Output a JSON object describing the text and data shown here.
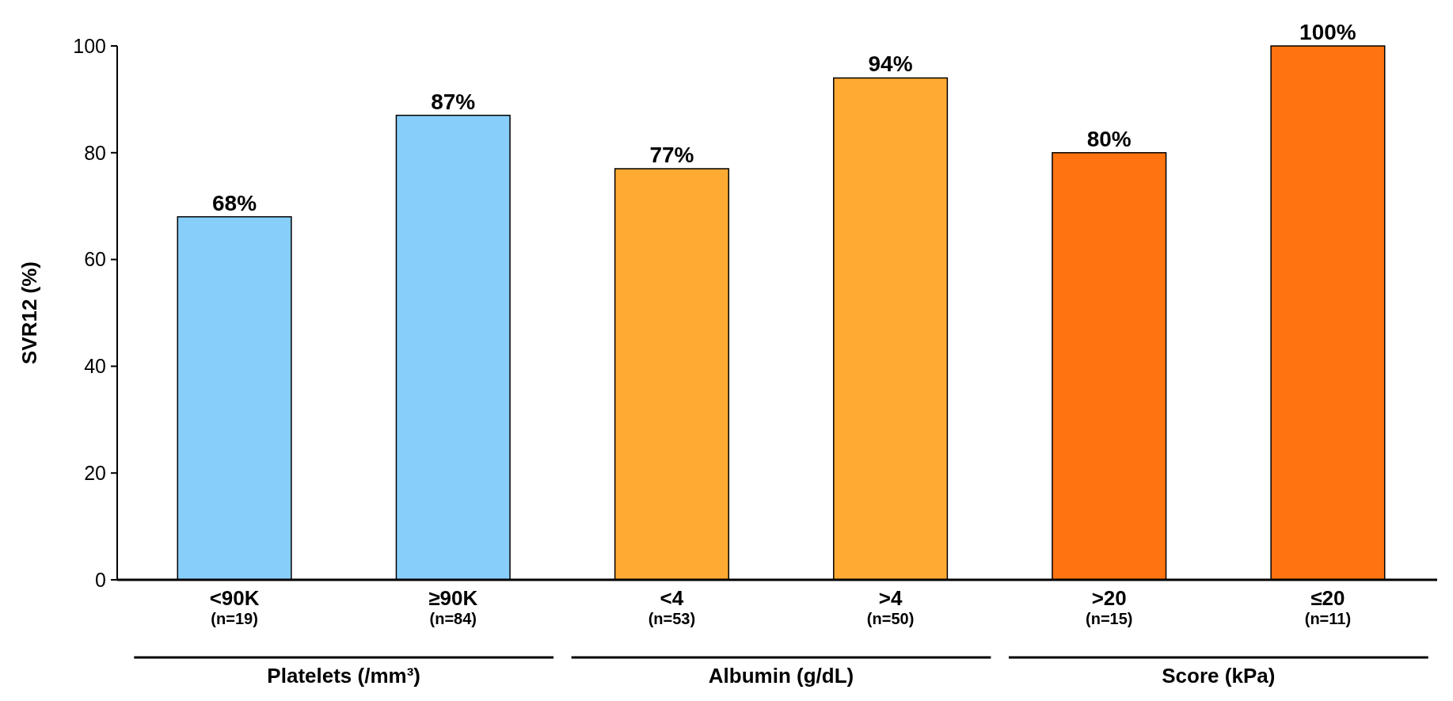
{
  "chart_data": {
    "type": "bar",
    "ylabel": "SVR12 (%)",
    "categories": [
      "<90K\n(n=19)",
      "≥90K\n(n=84)",
      "<4\n(n=53)",
      ">4\n(n=50)",
      ">20\n(n=15)",
      "≤20\n(n=11)"
    ],
    "values": [
      68,
      87,
      77,
      94,
      80,
      100
    ],
    "value_labels": [
      "68%",
      "87%",
      "77%",
      "94%",
      "80%",
      "100%"
    ],
    "colors": [
      "#87cefa",
      "#87cefa",
      "#ffaa33",
      "#ffaa33",
      "#ff7410",
      "#ff7410"
    ],
    "ylim": [
      0,
      100
    ],
    "yticks": [
      0,
      20,
      40,
      60,
      80,
      100
    ],
    "grid": false,
    "annotations": [
      "Platelets (/mm³)",
      "Albumin (g/dL)",
      "Score (kPa)"
    ]
  }
}
